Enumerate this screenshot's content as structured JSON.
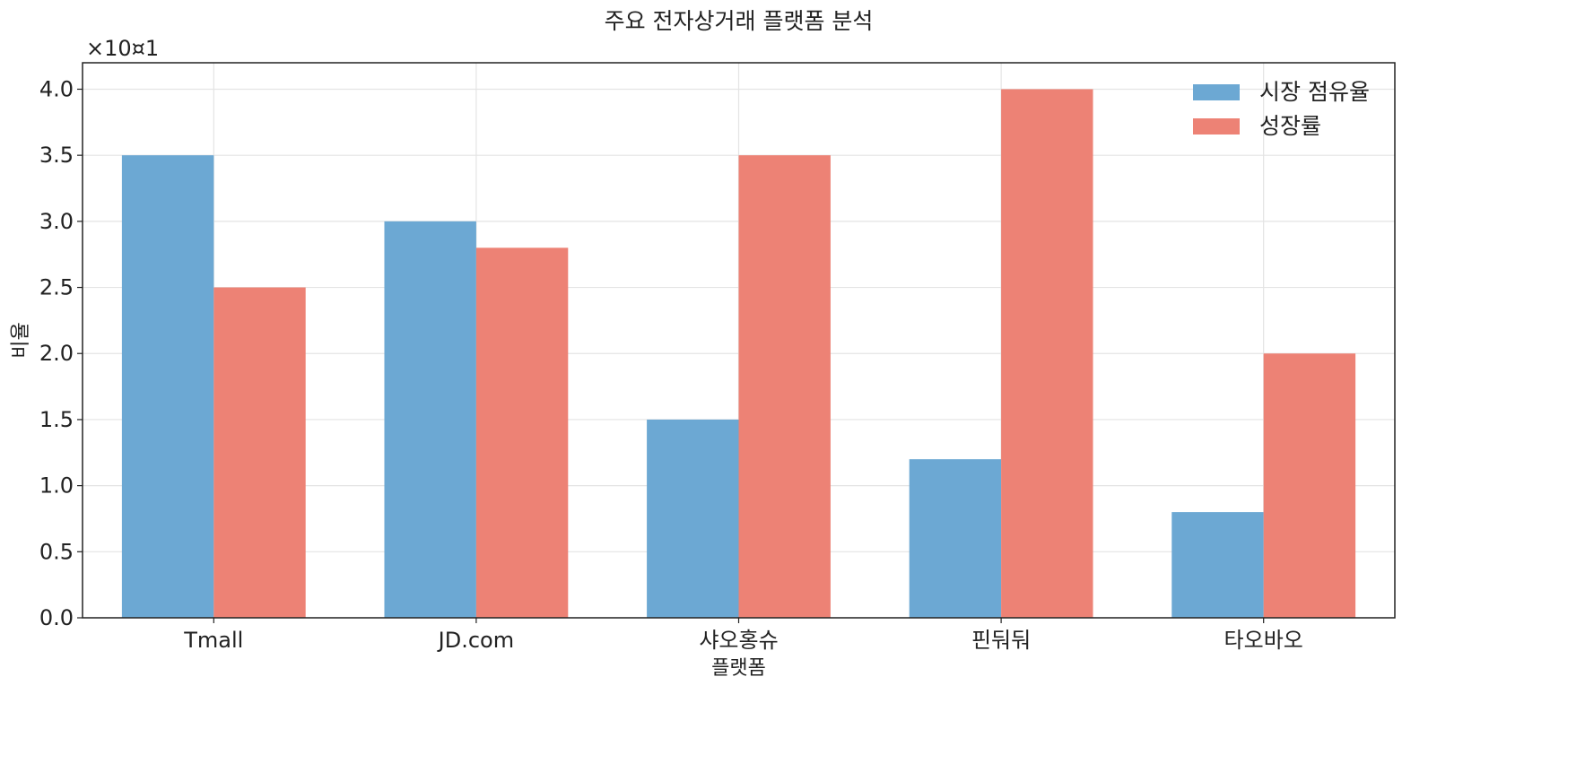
{
  "chart_data": {
    "type": "bar",
    "title": "주요 전자상거래 플랫폼 분석",
    "xlabel": "플랫폼",
    "ylabel": "비율",
    "y_offset_label": "×10¤1",
    "categories": [
      "Tmall",
      "JD.com",
      "샤오홍슈",
      "핀둬둬",
      "타오바오"
    ],
    "series": [
      {
        "name": "시장 점유율",
        "values": [
          35,
          30,
          15,
          12,
          8
        ],
        "color": "#6ca8d3"
      },
      {
        "name": "성장률",
        "values": [
          25,
          28,
          35,
          40,
          20
        ],
        "color": "#ed8275"
      }
    ],
    "ylim": [
      0,
      42
    ],
    "y_ticks": [
      0,
      5,
      10,
      15,
      20,
      25,
      30,
      35,
      40
    ],
    "y_tick_labels": [
      "0.0",
      "0.5",
      "1.0",
      "1.5",
      "2.0",
      "2.5",
      "3.0",
      "3.5",
      "4.0"
    ],
    "grid": true,
    "legend_position": "top-right"
  }
}
